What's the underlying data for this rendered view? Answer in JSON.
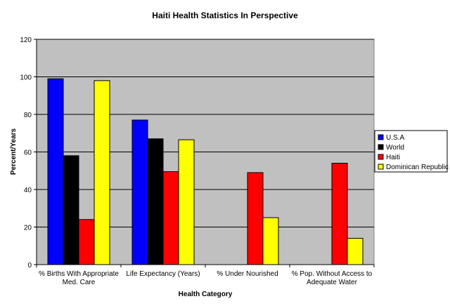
{
  "chart_data": {
    "type": "bar",
    "title": "Haiti Health Statistics In Perspective",
    "xlabel": "Health Category",
    "ylabel": "Percent/Years",
    "ylim": [
      0,
      120
    ],
    "yticks": [
      0,
      20,
      40,
      60,
      80,
      100,
      120
    ],
    "grid": true,
    "legend_position": "right",
    "categories": [
      [
        "% Births With Appropriate",
        "Med. Care"
      ],
      [
        "Life Expectancy (Years)"
      ],
      [
        "% Under Nourished"
      ],
      [
        "% Pop. Without Access to",
        "Adequate Water"
      ]
    ],
    "series": [
      {
        "name": "U.S.A",
        "color": "#0000ff",
        "values": [
          99,
          77,
          null,
          null
        ]
      },
      {
        "name": "World",
        "color": "#000000",
        "values": [
          58,
          67,
          null,
          null
        ]
      },
      {
        "name": "Haiti",
        "color": "#ff0000",
        "values": [
          24,
          49.5,
          49,
          54
        ]
      },
      {
        "name": "Dominican Republic",
        "color": "#ffff00",
        "values": [
          98,
          66.5,
          25,
          14
        ]
      }
    ],
    "colors": {
      "plot_background": "#c0c0c0",
      "gridline": "#000000",
      "bar_outline": "#000000"
    }
  }
}
